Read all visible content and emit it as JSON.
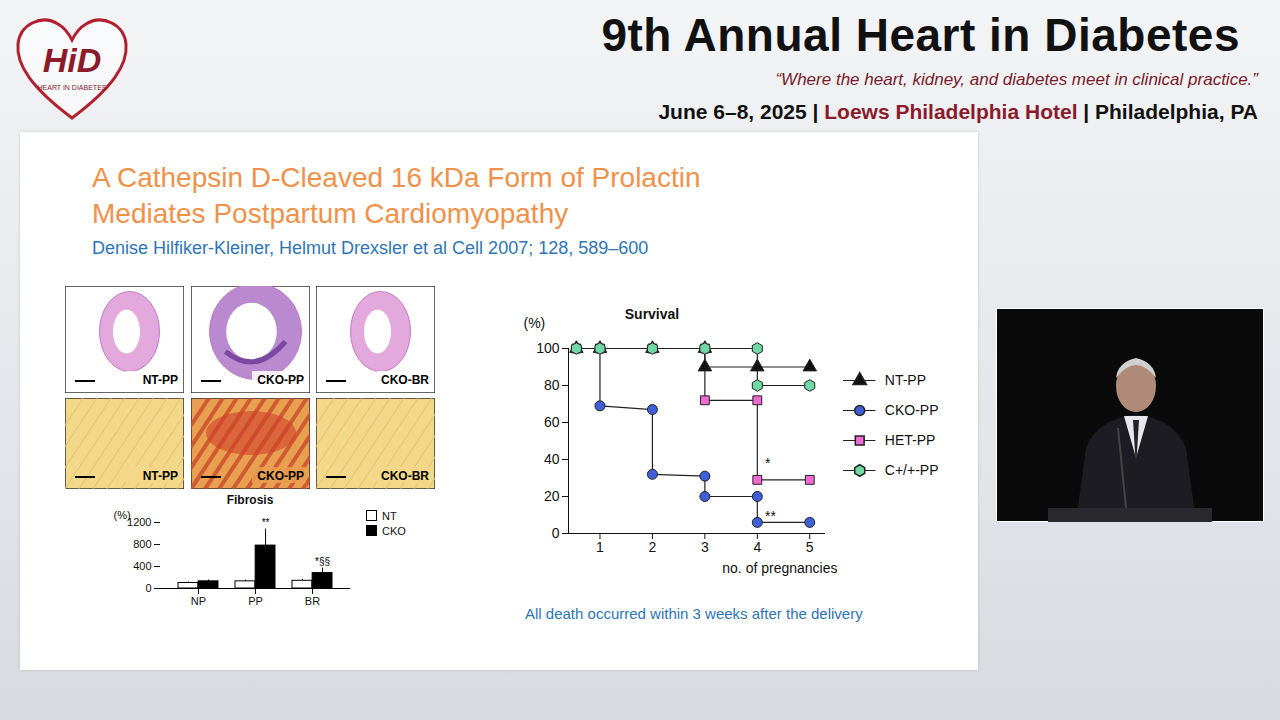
{
  "header": {
    "logo_text": "HiD",
    "logo_subtext": "HEART IN DIABETES",
    "title": "9th Annual Heart in Diabetes",
    "tagline": "“Where the heart, kidney, and diabetes meet in clinical practice.”",
    "date": "June 6–8, 2025",
    "venue": "Loews Philadelphia Hotel",
    "city": "Philadelphia, PA",
    "separator": "|"
  },
  "slide": {
    "title": "A Cathepsin D-Cleaved 16 kDa Form of Prolactin Mediates Postpartum Cardiomyopathy",
    "citation": "Denise Hilfiker-Kleiner, Helmut Drexsler et al Cell 2007; 128, 589–600",
    "caption": "All death occurred within 3 weeks after the delivery"
  },
  "histology": {
    "top_labels": [
      "NT-PP",
      "CKO-PP",
      "CKO-BR"
    ],
    "bottom_labels": [
      "NT-PP",
      "CKO-PP",
      "CKO-BR"
    ]
  },
  "chart_data": [
    {
      "type": "line",
      "title": "Survival",
      "x_label": "no. of pregnancies",
      "y_label": "(%)",
      "xlim": [
        0.4,
        5.3
      ],
      "xticks": [
        1,
        2,
        3,
        4,
        5
      ],
      "ylim": [
        0,
        100
      ],
      "yticks": [
        0,
        20,
        40,
        60,
        80,
        100
      ],
      "legend": "right",
      "series": [
        {
          "name": "NT-PP",
          "color": "#111111",
          "marker": "triangle",
          "x": [
            0.55,
            1,
            2,
            3,
            3,
            4,
            5
          ],
          "values": [
            100,
            100,
            100,
            100,
            90,
            90,
            90
          ]
        },
        {
          "name": "CKO-PP",
          "color": "#3f5fd8",
          "marker": "circle",
          "x": [
            0.55,
            1,
            1,
            2,
            2,
            3,
            3,
            4,
            4,
            5
          ],
          "values": [
            100,
            100,
            69,
            67,
            32,
            31,
            20,
            20,
            6,
            6
          ]
        },
        {
          "name": "HET-PP",
          "color": "#f06ad6",
          "marker": "square",
          "x": [
            0.55,
            1,
            2,
            3,
            3,
            4,
            4,
            5
          ],
          "values": [
            100,
            100,
            100,
            100,
            72,
            72,
            29,
            29
          ]
        },
        {
          "name": "C+/+-PP",
          "color": "#6fd8a4",
          "marker": "hexagon",
          "x": [
            0.55,
            1,
            2,
            3,
            4,
            4,
            5
          ],
          "values": [
            100,
            100,
            100,
            100,
            100,
            80,
            80
          ]
        }
      ],
      "annotations": [
        {
          "text": "*",
          "x": 4.2,
          "y": 38
        },
        {
          "text": "**",
          "x": 4.25,
          "y": 9
        }
      ]
    },
    {
      "type": "bar",
      "title": "Fibrosis",
      "y_label": "(%)",
      "categories": [
        "NP",
        "PP",
        "BR"
      ],
      "ylim": [
        0,
        1200
      ],
      "yticks": [
        0,
        400,
        800,
        1200
      ],
      "legend": "right",
      "series": [
        {
          "name": "NT",
          "color": "#ffffff",
          "values": [
            100,
            130,
            140
          ],
          "errors": [
            20,
            25,
            25
          ]
        },
        {
          "name": "CKO",
          "color": "#000000",
          "values": [
            130,
            780,
            280
          ],
          "errors": [
            25,
            300,
            90
          ]
        }
      ],
      "annotations": [
        {
          "text": "**",
          "category": "PP",
          "series": "CKO"
        },
        {
          "text": "*§§",
          "category": "BR",
          "series": "CKO"
        }
      ]
    }
  ]
}
